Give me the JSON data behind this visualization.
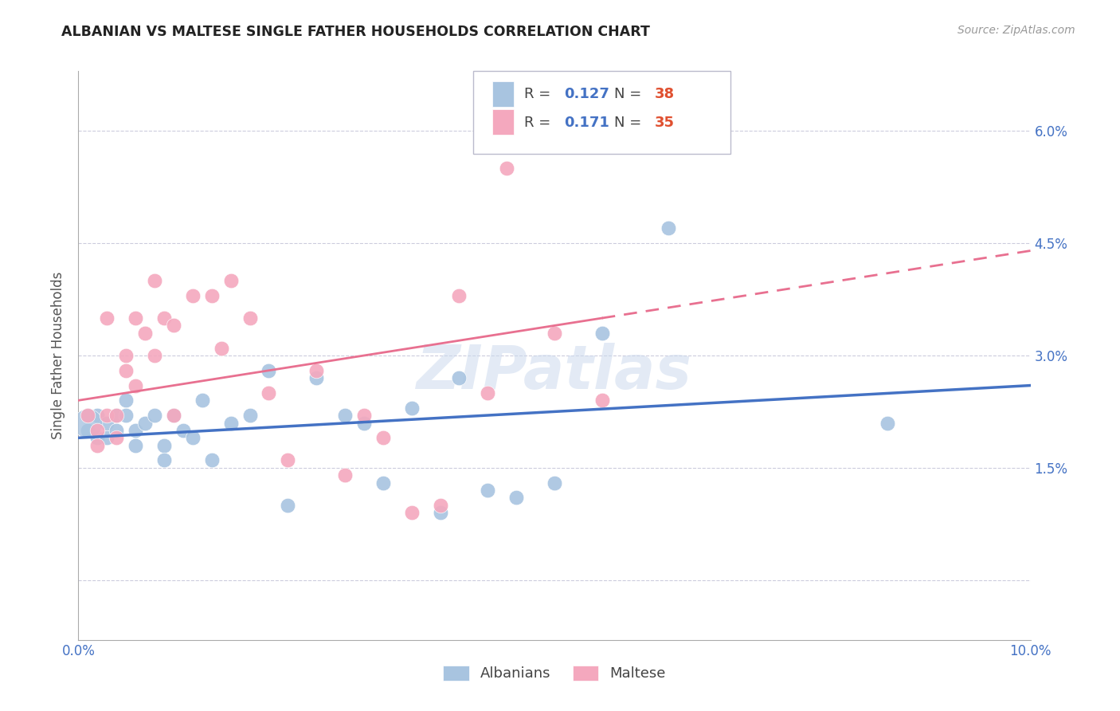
{
  "title": "ALBANIAN VS MALTESE SINGLE FATHER HOUSEHOLDS CORRELATION CHART",
  "source": "Source: ZipAtlas.com",
  "ylabel": "Single Father Households",
  "watermark": "ZIPatlas",
  "xlim": [
    0.0,
    0.1
  ],
  "ylim": [
    -0.008,
    0.068
  ],
  "yticks": [
    0.0,
    0.015,
    0.03,
    0.045,
    0.06
  ],
  "ytick_labels": [
    "",
    "1.5%",
    "3.0%",
    "4.5%",
    "6.0%"
  ],
  "albanian_R": 0.127,
  "albanian_N": 38,
  "maltese_R": 0.171,
  "maltese_N": 35,
  "albanian_color": "#a8c4e0",
  "maltese_color": "#f4a8be",
  "albanian_line_color": "#4472c4",
  "maltese_line_color": "#e87090",
  "grid_color": "#ccccdd",
  "alb_line_start_y": 0.019,
  "alb_line_end_y": 0.026,
  "mal_line_start_y": 0.024,
  "mal_line_end_y": 0.044,
  "albanian_x": [
    0.001,
    0.001,
    0.002,
    0.002,
    0.003,
    0.003,
    0.004,
    0.004,
    0.005,
    0.005,
    0.006,
    0.006,
    0.007,
    0.008,
    0.009,
    0.009,
    0.01,
    0.011,
    0.012,
    0.013,
    0.014,
    0.016,
    0.018,
    0.02,
    0.022,
    0.025,
    0.028,
    0.03,
    0.032,
    0.035,
    0.038,
    0.04,
    0.043,
    0.046,
    0.05,
    0.055,
    0.062,
    0.085
  ],
  "albanian_y": [
    0.022,
    0.02,
    0.022,
    0.019,
    0.021,
    0.019,
    0.022,
    0.02,
    0.024,
    0.022,
    0.02,
    0.018,
    0.021,
    0.022,
    0.018,
    0.016,
    0.022,
    0.02,
    0.019,
    0.024,
    0.016,
    0.021,
    0.022,
    0.028,
    0.01,
    0.027,
    0.022,
    0.021,
    0.013,
    0.023,
    0.009,
    0.027,
    0.012,
    0.011,
    0.013,
    0.033,
    0.047,
    0.021
  ],
  "maltese_x": [
    0.001,
    0.002,
    0.002,
    0.003,
    0.003,
    0.004,
    0.004,
    0.005,
    0.005,
    0.006,
    0.006,
    0.007,
    0.008,
    0.008,
    0.009,
    0.01,
    0.01,
    0.012,
    0.014,
    0.015,
    0.016,
    0.018,
    0.02,
    0.022,
    0.025,
    0.028,
    0.03,
    0.032,
    0.035,
    0.038,
    0.04,
    0.043,
    0.045,
    0.05,
    0.055
  ],
  "maltese_y": [
    0.022,
    0.02,
    0.018,
    0.035,
    0.022,
    0.019,
    0.022,
    0.03,
    0.028,
    0.035,
    0.026,
    0.033,
    0.04,
    0.03,
    0.035,
    0.034,
    0.022,
    0.038,
    0.038,
    0.031,
    0.04,
    0.035,
    0.025,
    0.016,
    0.028,
    0.014,
    0.022,
    0.019,
    0.009,
    0.01,
    0.038,
    0.025,
    0.055,
    0.033,
    0.024
  ]
}
